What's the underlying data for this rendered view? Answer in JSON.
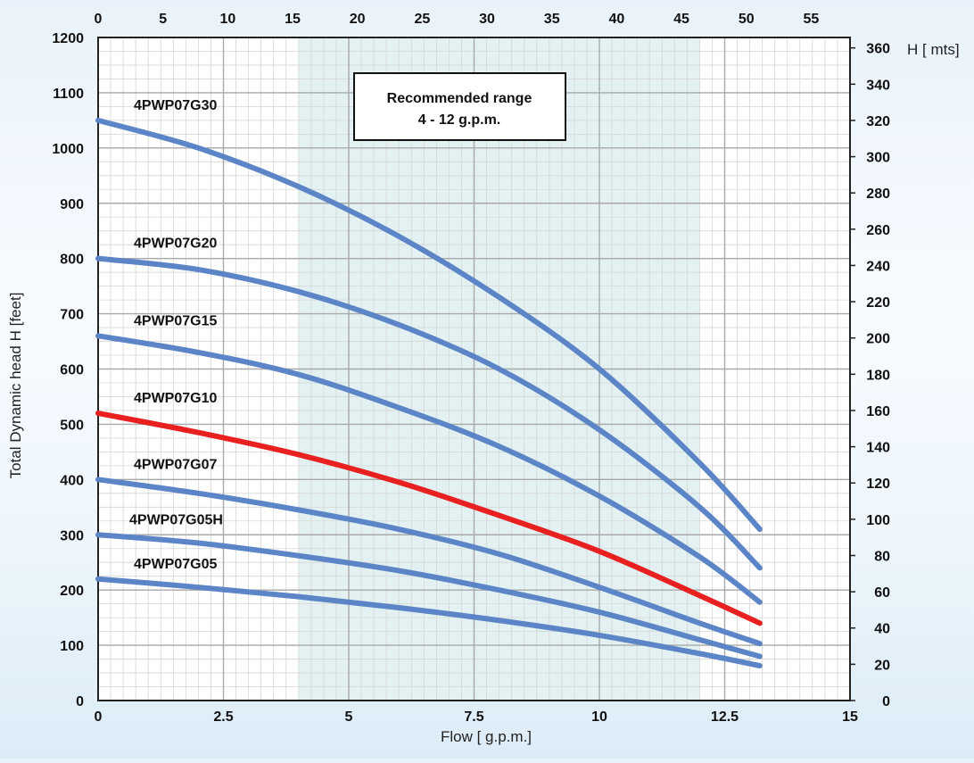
{
  "chart_data": {
    "type": "line",
    "annotation": {
      "line1": "Recommended range",
      "line2": "4 - 12 g.p.m.",
      "range": [
        4,
        12
      ]
    },
    "x_bottom": {
      "label": "Flow [ g.p.m.]",
      "range": [
        0,
        15
      ],
      "ticks": [
        "0",
        "2.5",
        "5",
        "7.5",
        "10",
        "12.5",
        "15"
      ]
    },
    "x_top": {
      "label": "",
      "ticks": [
        "0",
        "5",
        "10",
        "15",
        "20",
        "25",
        "30",
        "35",
        "40",
        "45",
        "50",
        "55"
      ]
    },
    "y_left": {
      "label": "Total Dynamic head H [feet]",
      "range": [
        0,
        1200
      ],
      "ticks": [
        "0",
        "100",
        "200",
        "300",
        "400",
        "500",
        "600",
        "700",
        "800",
        "900",
        "1000",
        "1100",
        "1200"
      ]
    },
    "y_right": {
      "label": "H [ mts]",
      "ticks": [
        "0",
        "20",
        "40",
        "60",
        "80",
        "100",
        "120",
        "140",
        "160",
        "180",
        "200",
        "220",
        "240",
        "260",
        "280",
        "300",
        "320",
        "340",
        "360"
      ]
    },
    "grid": true,
    "series": [
      {
        "name": "4PWP07G30",
        "color": "#5b85c6",
        "x": [
          0,
          2,
          4,
          6,
          8,
          10,
          12,
          13.2
        ],
        "y": [
          1050,
          1000,
          930,
          840,
          730,
          600,
          430,
          310
        ]
      },
      {
        "name": "4PWP07G20",
        "color": "#5b85c6",
        "x": [
          0,
          2,
          4,
          6,
          8,
          10,
          12,
          13.2
        ],
        "y": [
          800,
          780,
          740,
          680,
          600,
          490,
          350,
          240
        ]
      },
      {
        "name": "4PWP07G15",
        "color": "#5b85c6",
        "x": [
          0,
          2,
          4,
          6,
          8,
          10,
          12,
          13.2
        ],
        "y": [
          660,
          630,
          590,
          530,
          460,
          370,
          260,
          178
        ]
      },
      {
        "name": "4PWP07G10",
        "color": "#e82020",
        "x": [
          0,
          2,
          4,
          6,
          8,
          10,
          12,
          13.2
        ],
        "y": [
          520,
          485,
          445,
          395,
          335,
          270,
          190,
          140
        ]
      },
      {
        "name": "4PWP07G07",
        "color": "#5b85c6",
        "x": [
          0,
          2,
          4,
          6,
          8,
          10,
          12,
          13.2
        ],
        "y": [
          400,
          375,
          345,
          310,
          265,
          205,
          140,
          103
        ]
      },
      {
        "name": "4PWP07G05H",
        "color": "#5b85c6",
        "x": [
          0,
          2,
          4,
          6,
          8,
          10,
          12,
          13.2
        ],
        "y": [
          300,
          285,
          262,
          235,
          200,
          160,
          110,
          80
        ]
      },
      {
        "name": "4PWP07G05",
        "color": "#5b85c6",
        "x": [
          0,
          2,
          4,
          6,
          8,
          10,
          12,
          13.2
        ],
        "y": [
          220,
          205,
          188,
          168,
          145,
          118,
          85,
          63
        ]
      }
    ]
  }
}
